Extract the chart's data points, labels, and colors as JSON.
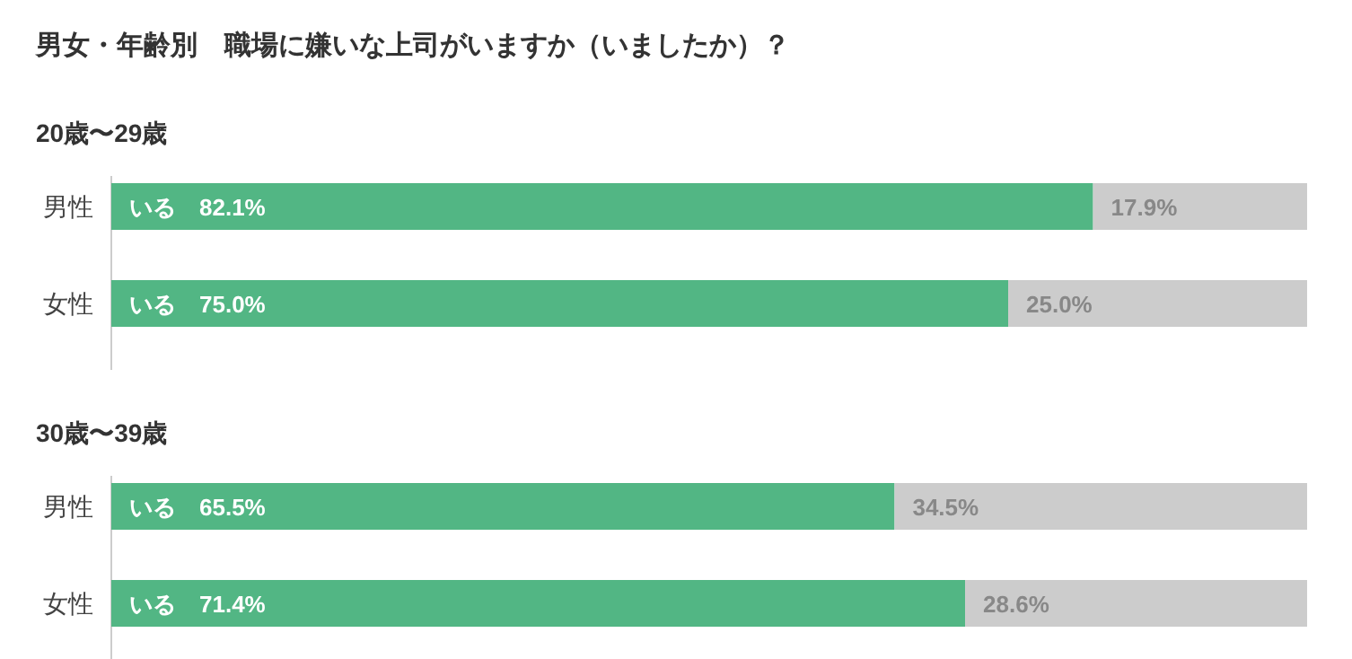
{
  "chart_data": [
    {
      "type": "bar",
      "orientation": "horizontal",
      "stacked": true,
      "title": "男女・年齢別　職場に嫌いな上司がいますか（いましたか）？",
      "subtitle": "20歳〜29歳",
      "categories": [
        "男性",
        "女性"
      ],
      "xlim": [
        0,
        100
      ],
      "tick_labels": "y",
      "series": [
        {
          "color": "#52b684",
          "values": [
            82.1,
            75.0
          ],
          "value_labels": [
            "いる　82.1%",
            "いる　75.0%"
          ]
        },
        {
          "color": "#cccccc",
          "values": [
            17.9,
            25.0
          ],
          "value_labels": [
            "17.9%",
            "25.0%"
          ]
        }
      ]
    },
    {
      "type": "bar",
      "orientation": "horizontal",
      "stacked": true,
      "subtitle": "30歳〜39歳",
      "categories": [
        "男性",
        "女性"
      ],
      "xlim": [
        0,
        100
      ],
      "tick_labels": "y",
      "series": [
        {
          "color": "#52b684",
          "values": [
            65.5,
            71.4
          ],
          "value_labels": [
            "いる　65.5%",
            "いる　71.4%"
          ]
        },
        {
          "color": "#cccccc",
          "values": [
            34.5,
            28.6
          ],
          "value_labels": [
            "34.5%",
            "28.6%"
          ]
        }
      ]
    }
  ]
}
